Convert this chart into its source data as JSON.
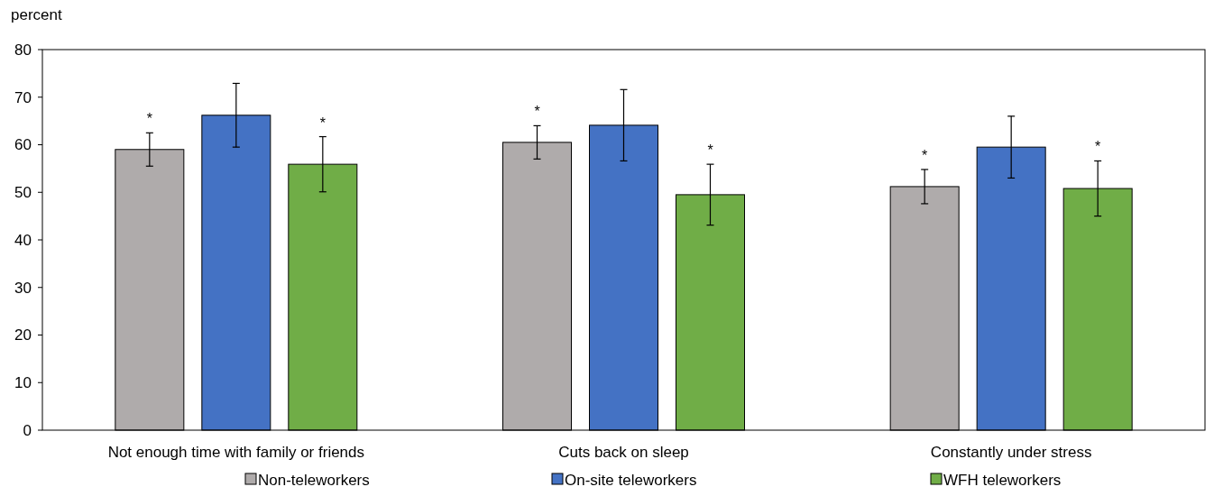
{
  "chart_data": {
    "type": "bar",
    "ylabel": "percent",
    "categories": [
      "Not enough time with family or friends",
      "Cuts back on sleep",
      "Constantly under stress"
    ],
    "series": [
      {
        "name": "Non-teleworkers",
        "color": "#afabab",
        "values": [
          59,
          60.5,
          51.2
        ],
        "errors": [
          3.5,
          3.5,
          3.6
        ],
        "value_labels": [
          "*",
          "*",
          "*"
        ]
      },
      {
        "name": "On-site teleworkers",
        "color": "#4472c4",
        "values": [
          66.2,
          64.1,
          59.5
        ],
        "errors": [
          6.7,
          7.5,
          6.5
        ],
        "value_labels": [
          null,
          null,
          null
        ]
      },
      {
        "name": "WFH teleworkers",
        "color": "#70ad47",
        "values": [
          55.9,
          49.5,
          50.8
        ],
        "errors": [
          5.8,
          6.4,
          5.8
        ],
        "value_labels": [
          "*",
          "*",
          "*"
        ]
      }
    ],
    "ylim": [
      0,
      80
    ],
    "yticks": [
      0,
      10,
      20,
      30,
      40,
      50,
      60,
      70,
      80
    ],
    "grid": false,
    "legend": "bottom"
  }
}
